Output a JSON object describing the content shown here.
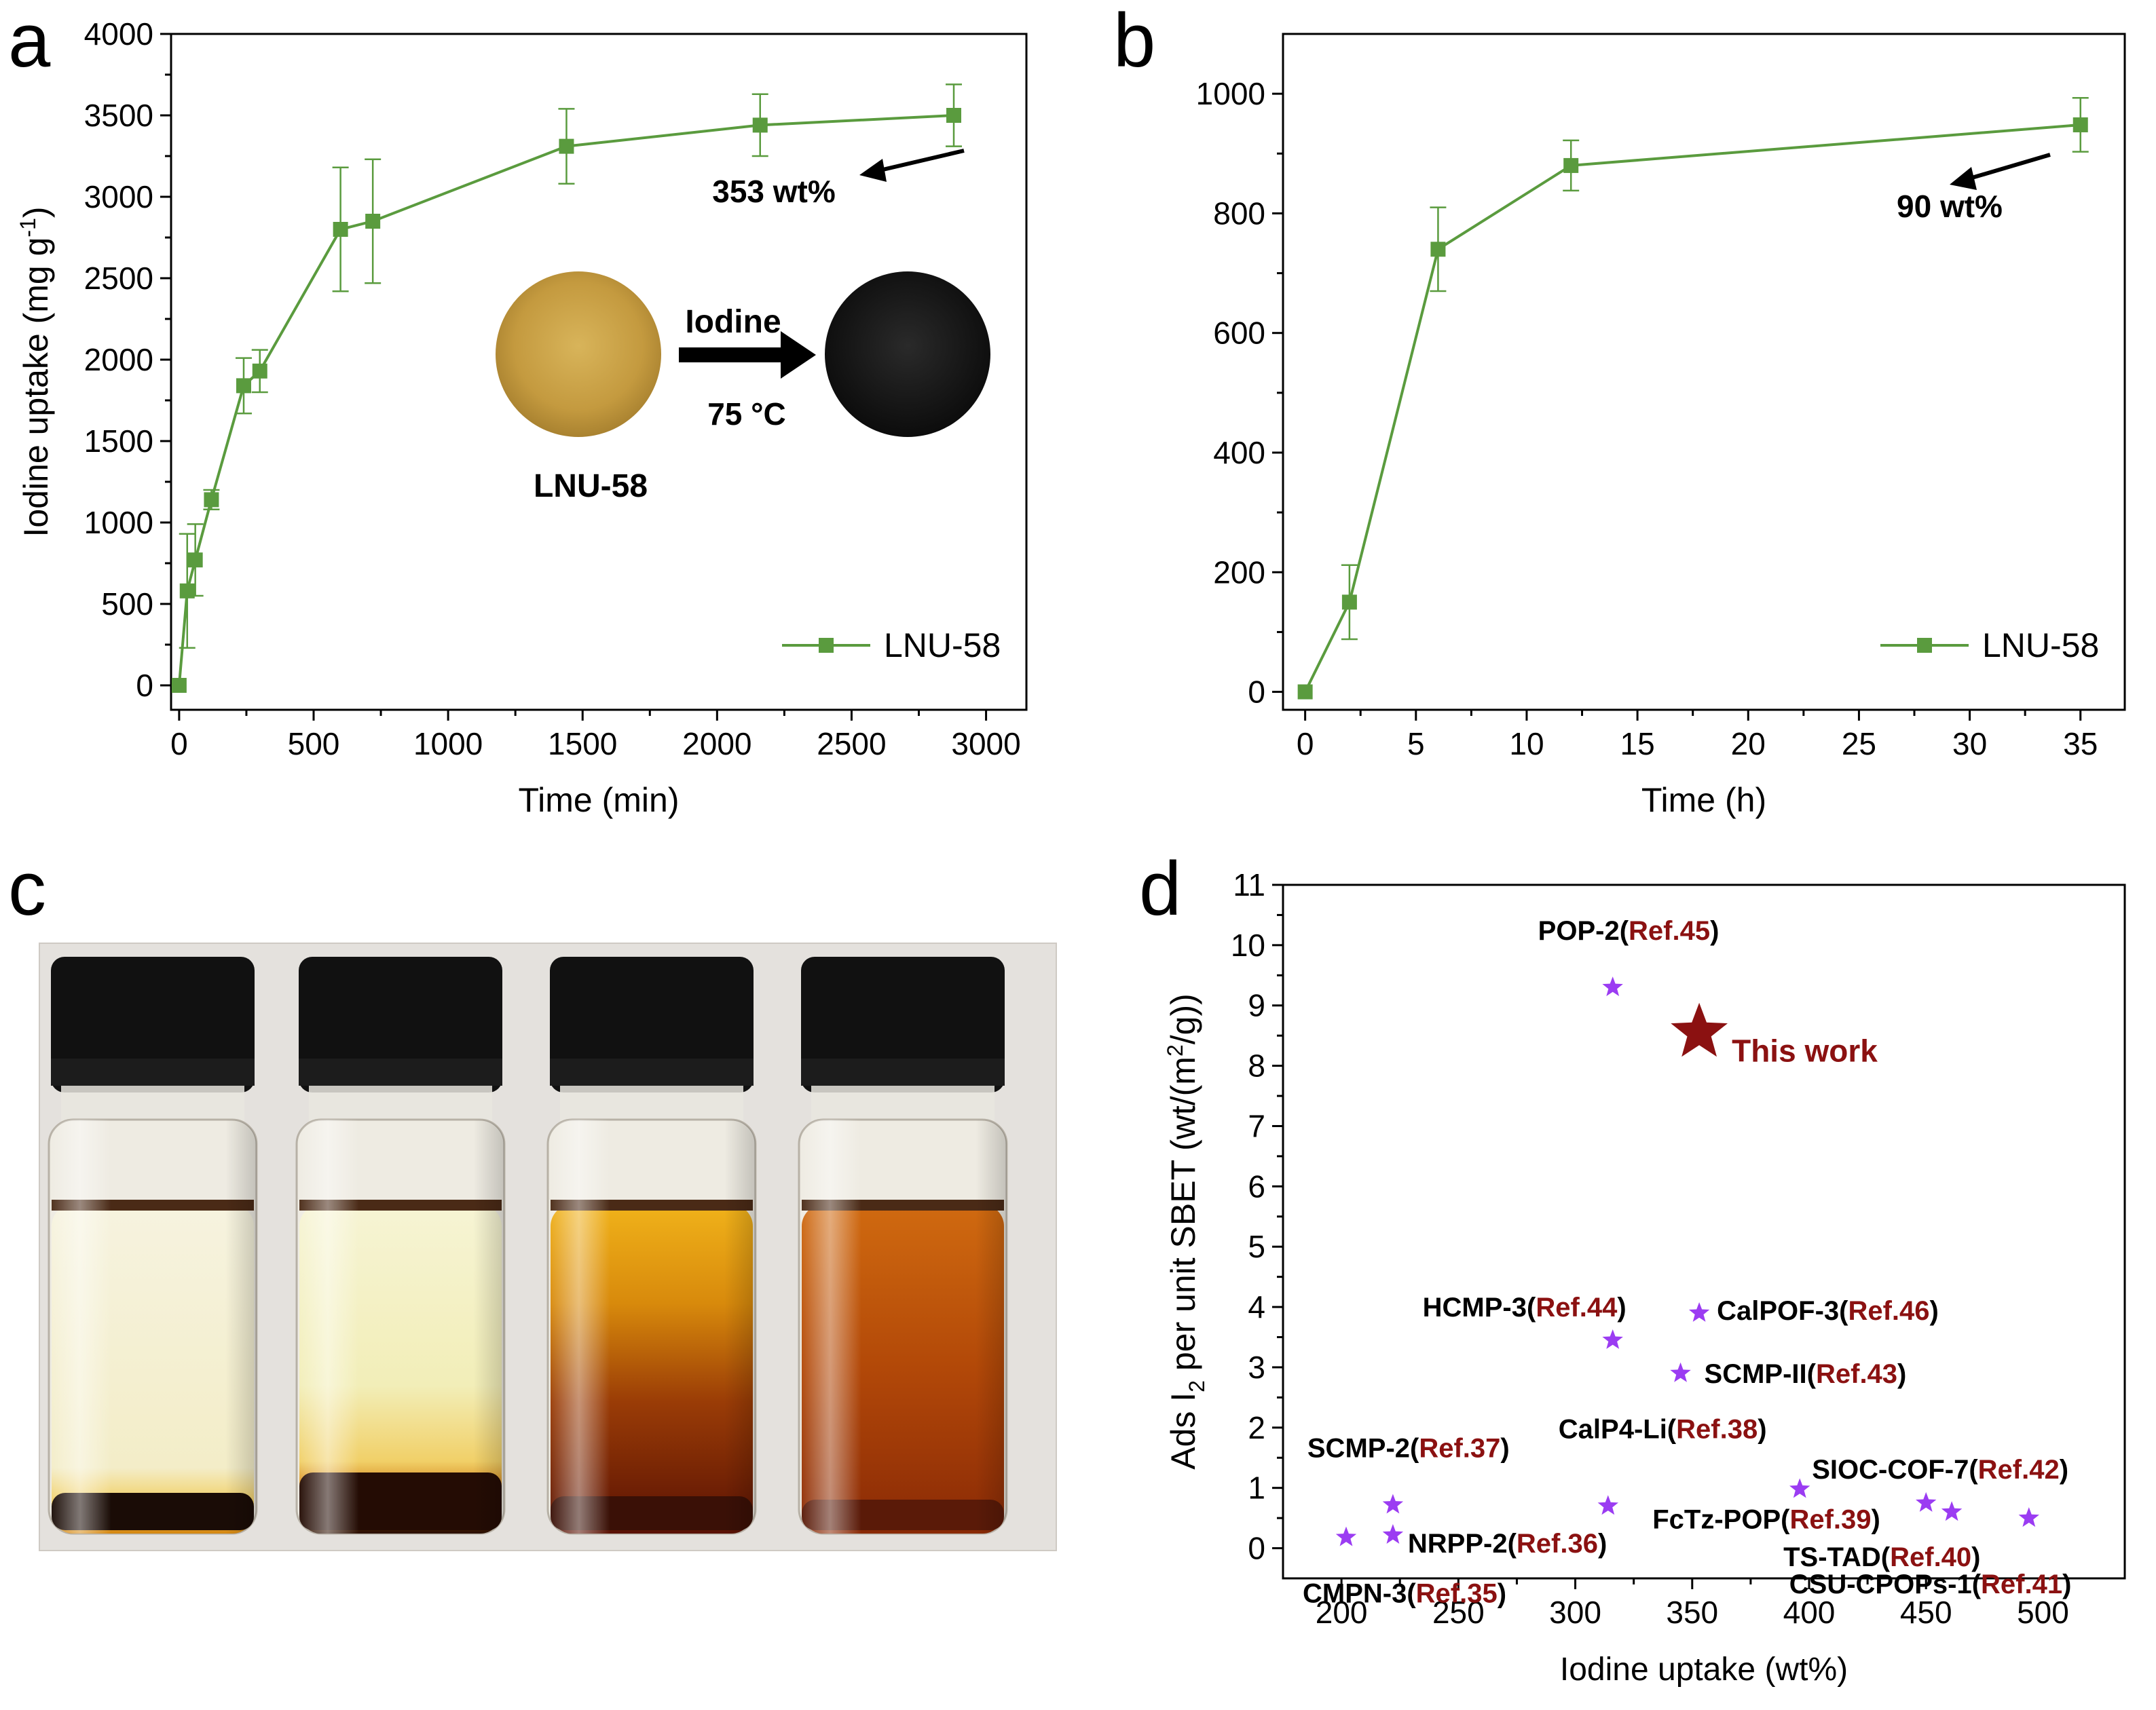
{
  "panels": {
    "a": {
      "letter": "a"
    },
    "b": {
      "letter": "b"
    },
    "c": {
      "letter": "c"
    },
    "d": {
      "letter": "d"
    }
  },
  "colors": {
    "series": "#5a9b3e",
    "marker": "#5a9b3e",
    "purple": "#9b3cf2",
    "darkred": "#8b1111",
    "axis": "#000000"
  },
  "chart_data": [
    {
      "id": "a",
      "type": "line",
      "title": "",
      "xlabel": "Time (min)",
      "ylabel": "Iodine uptake (mg g",
      "ylabel_sup": "-1",
      "ylabel_close": ")",
      "xlim": [
        -30,
        3150
      ],
      "ylim": [
        -150,
        4000
      ],
      "xticks": [
        0,
        500,
        1000,
        1500,
        2000,
        2500,
        3000
      ],
      "yticks": [
        0,
        500,
        1000,
        1500,
        2000,
        2500,
        3000,
        3500,
        4000
      ],
      "series": [
        {
          "name": "LNU-58",
          "x": [
            0,
            30,
            60,
            120,
            240,
            300,
            600,
            720,
            1440,
            2160,
            2880
          ],
          "y": [
            0,
            580,
            770,
            1140,
            1840,
            1930,
            2800,
            2850,
            3310,
            3440,
            3500
          ],
          "err": [
            0,
            350,
            220,
            60,
            170,
            130,
            380,
            380,
            230,
            190,
            190
          ]
        }
      ],
      "legend": {
        "label": "LNU-58",
        "position": "bottom-right"
      },
      "annotation": "353 wt%",
      "inset": {
        "arrow_label": "Iodine",
        "temp_label": "75 °C",
        "sample_label": "LNU-58"
      }
    },
    {
      "id": "b",
      "type": "line",
      "title": "",
      "xlabel": "Time (h)",
      "ylabel": "",
      "xlim": [
        -1,
        37
      ],
      "ylim": [
        -30,
        1100
      ],
      "xticks": [
        0,
        5,
        10,
        15,
        20,
        25,
        30,
        35
      ],
      "yticks": [
        0,
        200,
        400,
        600,
        800,
        1000
      ],
      "series": [
        {
          "name": "LNU-58",
          "x": [
            0,
            2,
            6,
            12,
            35
          ],
          "y": [
            0,
            150,
            740,
            880,
            948
          ],
          "err": [
            0,
            62,
            70,
            42,
            45
          ]
        }
      ],
      "legend": {
        "label": "LNU-58",
        "position": "bottom-right"
      },
      "annotation": "90 wt%"
    },
    {
      "id": "d",
      "type": "scatter",
      "title": "",
      "xlabel": "Iodine uptake (wt%)",
      "ylabel_prefix": "Ads I",
      "ylabel_sub": "2",
      "ylabel_mid": " per unit SBET (wt/(m",
      "ylabel_sup": "2",
      "ylabel_suffix": "/g))",
      "xlim": [
        175,
        535
      ],
      "ylim": [
        -0.5,
        11
      ],
      "xticks": [
        200,
        250,
        300,
        350,
        400,
        450,
        500
      ],
      "yticks": [
        0,
        1,
        2,
        3,
        4,
        5,
        6,
        7,
        8,
        9,
        10,
        11
      ],
      "points": [
        {
          "name": "POP-2",
          "ref": "Ref.45",
          "x": 316,
          "y": 9.3
        },
        {
          "name": "HCMP-3",
          "ref": "Ref.44",
          "x": 316,
          "y": 3.45
        },
        {
          "name": "CalPOF-3",
          "ref": "Ref.46",
          "x": 353,
          "y": 3.9
        },
        {
          "name": "SCMP-II",
          "ref": "Ref.43",
          "x": 345,
          "y": 2.9
        },
        {
          "name": "CalP4-Li",
          "ref": "Ref.38",
          "x": 314,
          "y": 0.7
        },
        {
          "name": "SCMP-2",
          "ref": "Ref.37",
          "x": 222,
          "y": 0.72
        },
        {
          "name": "NRPP-2",
          "ref": "Ref.36",
          "x": 222,
          "y": 0.22
        },
        {
          "name": "CMPN-3",
          "ref": "Ref.35",
          "x": 202,
          "y": 0.18
        },
        {
          "name": "FcTz-POP",
          "ref": "Ref.39",
          "x": 396,
          "y": 0.98
        },
        {
          "name": "SIOC-COF-7",
          "ref": "Ref.42",
          "x": 450,
          "y": 0.75
        },
        {
          "name": "TS-TAD",
          "ref": "Ref.40",
          "x": 461,
          "y": 0.6
        },
        {
          "name": "CSU-CPOPs-1",
          "ref": "Ref.41",
          "x": 494,
          "y": 0.5
        }
      ],
      "highlight": {
        "name": "This work",
        "x": 353,
        "y": 8.55
      }
    }
  ]
}
